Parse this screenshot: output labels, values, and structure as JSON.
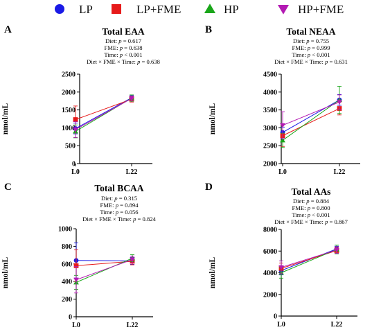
{
  "legend": [
    {
      "label": "LP",
      "color": "#1a1ae6",
      "marker": "circle"
    },
    {
      "label": "LP+FME",
      "color": "#e61a1a",
      "marker": "square"
    },
    {
      "label": "HP",
      "color": "#1aa61a",
      "marker": "triangle-up"
    },
    {
      "label": "HP+FME",
      "color": "#b31ab3",
      "marker": "triangle-down"
    }
  ],
  "chart_data": [
    {
      "type": "line",
      "panel_letter": "A",
      "title": "Total EAA",
      "stats": [
        {
          "label": "Diet: ",
          "p": "p",
          "value": " = 0.617"
        },
        {
          "label": "FME: ",
          "p": "p",
          "value": " = 0.638"
        },
        {
          "label": "Time: ",
          "p": "p",
          "value": " < 0.001"
        },
        {
          "label": "Diet × FME × Time: ",
          "p": "p",
          "value": " = 0.638"
        }
      ],
      "ylabel": "nmol/mL",
      "categories": [
        "L0",
        "L22"
      ],
      "ylim": [
        0,
        2500
      ],
      "yticks": [
        0,
        500,
        1000,
        1500,
        2000,
        2500
      ],
      "series": [
        {
          "name": "LP",
          "values": [
            980,
            1840
          ],
          "err": [
            150,
            60
          ]
        },
        {
          "name": "LP+FME",
          "values": [
            1230,
            1800
          ],
          "err": [
            380,
            80
          ]
        },
        {
          "name": "HP",
          "values": [
            900,
            1830
          ],
          "err": [
            180,
            90
          ]
        },
        {
          "name": "HP+FME",
          "values": [
            950,
            1820
          ],
          "err": [
            220,
            70
          ]
        }
      ]
    },
    {
      "type": "line",
      "panel_letter": "B",
      "title": "Total NEAA",
      "stats": [
        {
          "label": "Diet: ",
          "p": "p",
          "value": " = 0.755"
        },
        {
          "label": "FME: ",
          "p": "p",
          "value": " = 0.999"
        },
        {
          "label": "Time: ",
          "p": "p",
          "value": " < 0.001"
        },
        {
          "label": "Diet × FME × Time: ",
          "p": "p",
          "value": " = 0.631"
        }
      ],
      "ylabel": "nmol/mL",
      "categories": [
        "L0",
        "L22"
      ],
      "ylim": [
        2000,
        4500
      ],
      "yticks": [
        2000,
        2500,
        3000,
        3500,
        4000,
        4500
      ],
      "series": [
        {
          "name": "LP",
          "values": [
            2870,
            3780
          ],
          "err": [
            150,
            150
          ]
        },
        {
          "name": "LP+FME",
          "values": [
            2780,
            3540
          ],
          "err": [
            300,
            180
          ]
        },
        {
          "name": "HP",
          "values": [
            2650,
            3780
          ],
          "err": [
            200,
            380
          ]
        },
        {
          "name": "HP+FME",
          "values": [
            3070,
            3720
          ],
          "err": [
            380,
            200
          ]
        }
      ]
    },
    {
      "type": "line",
      "panel_letter": "C",
      "title": "Total BCAA",
      "stats": [
        {
          "label": "Diet: ",
          "p": "p",
          "value": " = 0.315"
        },
        {
          "label": "FME: ",
          "p": "p",
          "value": " = 0.894"
        },
        {
          "label": "Time: ",
          "p": "p",
          "value": " = 0.056"
        },
        {
          "label": "Diet × FME × Time: ",
          "p": "p",
          "value": " = 0.824"
        }
      ],
      "ylabel": "nmol/mL",
      "categories": [
        "L0",
        "L22"
      ],
      "ylim": [
        0,
        1000
      ],
      "yticks": [
        0,
        200,
        400,
        600,
        800,
        1000
      ],
      "series": [
        {
          "name": "LP",
          "values": [
            640,
            635
          ],
          "err": [
            200,
            40
          ]
        },
        {
          "name": "LP+FME",
          "values": [
            580,
            630
          ],
          "err": [
            180,
            40
          ]
        },
        {
          "name": "HP",
          "values": [
            390,
            665
          ],
          "err": [
            80,
            40
          ]
        },
        {
          "name": "HP+FME",
          "values": [
            420,
            650
          ],
          "err": [
            150,
            40
          ]
        }
      ]
    },
    {
      "type": "line",
      "panel_letter": "D",
      "title": "Total AAs",
      "stats": [
        {
          "label": "Diet: ",
          "p": "p",
          "value": " = 0.884"
        },
        {
          "label": "FME: ",
          "p": "p",
          "value": " = 0.800"
        },
        {
          "label": "Time: ",
          "p": "p",
          "value": " < 0.001"
        },
        {
          "label": "Diet × FME × Time: ",
          "p": "p",
          "value": " = 0.867"
        }
      ],
      "ylabel": "nmol/mL",
      "categories": [
        "L0",
        "L22"
      ],
      "ylim": [
        0,
        8000
      ],
      "yticks": [
        0,
        2000,
        4000,
        6000,
        8000
      ],
      "series": [
        {
          "name": "LP",
          "values": [
            4200,
            6200
          ],
          "err": [
            400,
            250
          ]
        },
        {
          "name": "LP+FME",
          "values": [
            4400,
            6050
          ],
          "err": [
            500,
            250
          ]
        },
        {
          "name": "HP",
          "values": [
            4000,
            6150
          ],
          "err": [
            500,
            400
          ]
        },
        {
          "name": "HP+FME",
          "values": [
            4500,
            6100
          ],
          "err": [
            600,
            300
          ]
        }
      ]
    }
  ]
}
